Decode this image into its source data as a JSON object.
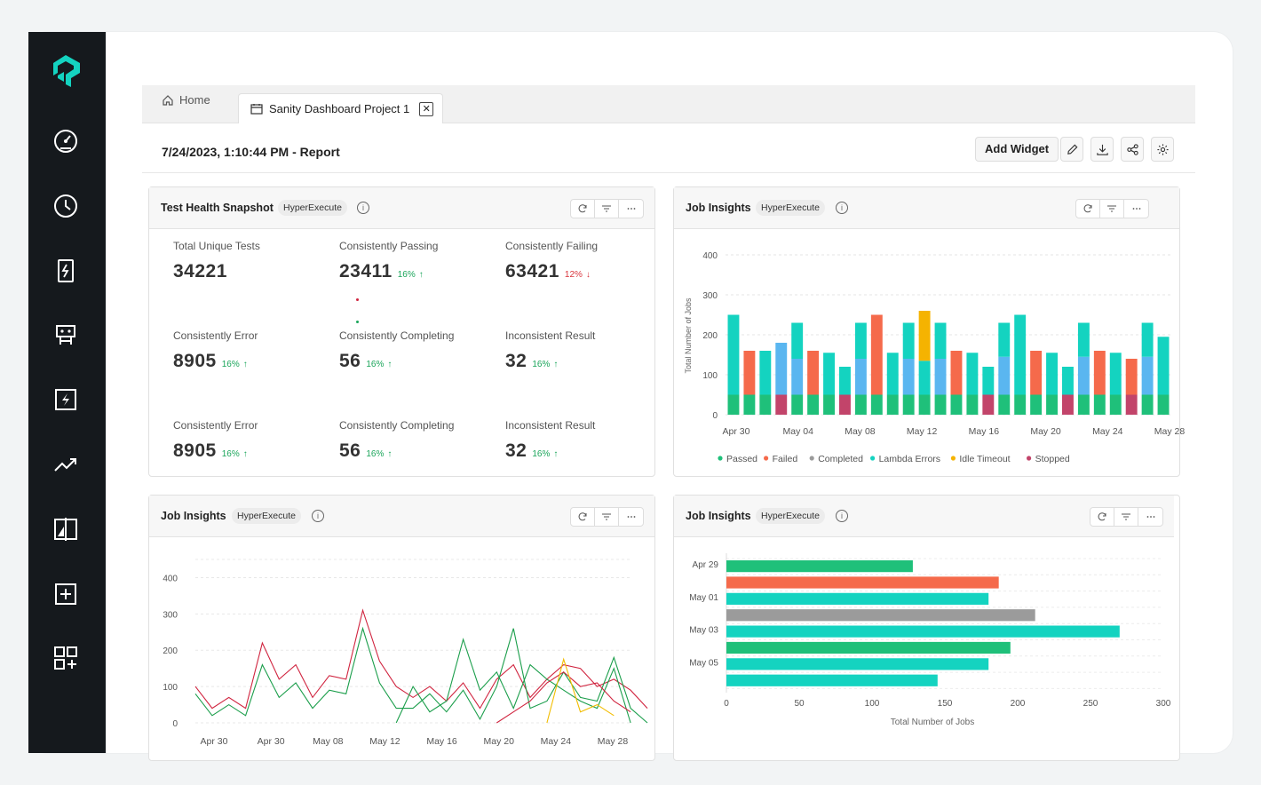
{
  "tabs": {
    "home_label": "Home",
    "active_label": "Sanity Dashboard Project 1",
    "close_glyph": "✕"
  },
  "report": {
    "title": "7/24/2023, 1:10:44 PM - Report",
    "add_widget_label": "Add Widget"
  },
  "widgets": {
    "health": {
      "title": "Test Health Snapshot",
      "badge": "HyperExecute",
      "stats": [
        {
          "label": "Total Unique Tests",
          "value": "34221",
          "delta": "",
          "trend": ""
        },
        {
          "label": "Consistently Passing",
          "value": "23411",
          "delta": "16%",
          "trend": "up"
        },
        {
          "label": "Consistently Failing",
          "value": "63421",
          "delta": "12%",
          "trend": "down"
        },
        {
          "label": "Consistently Error",
          "value": "8905",
          "delta": "16%",
          "trend": "up"
        },
        {
          "label": "Consistently Completing",
          "value": "56",
          "delta": "16%",
          "trend": "up"
        },
        {
          "label": "Inconsistent Result",
          "value": "32",
          "delta": "16%",
          "trend": "up"
        },
        {
          "label": "Consistently Error",
          "value": "8905",
          "delta": "16%",
          "trend": "up"
        },
        {
          "label": "Consistently Completing",
          "value": "56",
          "delta": "16%",
          "trend": "up"
        },
        {
          "label": "Inconsistent Result",
          "value": "32",
          "delta": "16%",
          "trend": "up"
        }
      ],
      "arrow_up": "↑",
      "arrow_down": "↓"
    },
    "bar": {
      "title": "Job Insights",
      "badge": "HyperExecute"
    },
    "line": {
      "title": "Job Insights",
      "badge": "HyperExecute"
    },
    "hbar": {
      "title": "Job Insights",
      "badge": "HyperExecute"
    }
  },
  "colors": {
    "passed": "#1fc07a",
    "failed": "#f56a4b",
    "completed": "#9b9b9b",
    "lambda": "#14d3c0",
    "idle": "#f5b301",
    "stopped": "#c2446a",
    "blue": "#5ab6f0",
    "line_red": "#d0243f",
    "line_green": "#1b9e4b",
    "line_yellow": "#f2bd00",
    "accent": "#14d3c0"
  },
  "chart_data": [
    {
      "type": "bar",
      "title": "Job Insights",
      "ylabel": "Total Number of Jobs",
      "ylim": [
        0,
        400
      ],
      "yticks": [
        0,
        100,
        200,
        300,
        400
      ],
      "xtick_labels": [
        "Apr 30",
        "May 04",
        "May 08",
        "May 12",
        "May 16",
        "May 20",
        "May 24",
        "May 28"
      ],
      "legend": [
        "Passed",
        "Failed",
        "Completed",
        "Lambda Errors",
        "Idle Timeout",
        "Stopped"
      ],
      "stacks": [
        {
          "segments": [
            [
              "Passed",
              50
            ],
            [
              "Lambda Errors",
              200
            ]
          ]
        },
        {
          "segments": [
            [
              "Passed",
              50
            ],
            [
              "Failed",
              110
            ]
          ]
        },
        {
          "segments": [
            [
              "Passed",
              50
            ],
            [
              "Lambda Errors",
              110
            ]
          ]
        },
        {
          "segments": [
            [
              "Stopped",
              50
            ],
            [
              "Blue",
              130
            ]
          ]
        },
        {
          "segments": [
            [
              "Passed",
              50
            ],
            [
              "Blue",
              90
            ],
            [
              "Lambda Errors",
              90
            ]
          ]
        },
        {
          "segments": [
            [
              "Passed",
              50
            ],
            [
              "Failed",
              110
            ]
          ]
        },
        {
          "segments": [
            [
              "Passed",
              50
            ],
            [
              "Lambda Errors",
              105
            ]
          ]
        },
        {
          "segments": [
            [
              "Stopped",
              50
            ],
            [
              "Lambda Errors",
              70
            ]
          ]
        },
        {
          "segments": [
            [
              "Passed",
              50
            ],
            [
              "Blue",
              90
            ],
            [
              "Lambda Errors",
              90
            ]
          ]
        },
        {
          "segments": [
            [
              "Passed",
              50
            ],
            [
              "Failed",
              200
            ]
          ]
        },
        {
          "segments": [
            [
              "Passed",
              50
            ],
            [
              "Lambda Errors",
              105
            ]
          ]
        },
        {
          "segments": [
            [
              "Passed",
              50
            ],
            [
              "Blue",
              90
            ],
            [
              "Lambda Errors",
              90
            ]
          ]
        },
        {
          "segments": [
            [
              "Passed",
              50
            ],
            [
              "Lambda Errors",
              85
            ],
            [
              "Idle Timeout",
              125
            ]
          ]
        },
        {
          "segments": [
            [
              "Passed",
              50
            ],
            [
              "Blue",
              90
            ],
            [
              "Lambda Errors",
              90
            ]
          ]
        },
        {
          "segments": [
            [
              "Passed",
              50
            ],
            [
              "Failed",
              110
            ]
          ]
        },
        {
          "segments": [
            [
              "Passed",
              50
            ],
            [
              "Lambda Errors",
              105
            ]
          ]
        },
        {
          "segments": [
            [
              "Stopped",
              50
            ],
            [
              "Lambda Errors",
              70
            ]
          ]
        },
        {
          "segments": [
            [
              "Passed",
              50
            ],
            [
              "Blue",
              95
            ],
            [
              "Lambda Errors",
              85
            ]
          ]
        },
        {
          "segments": [
            [
              "Passed",
              50
            ],
            [
              "Lambda Errors",
              200
            ]
          ]
        },
        {
          "segments": [
            [
              "Passed",
              50
            ],
            [
              "Failed",
              110
            ]
          ]
        },
        {
          "segments": [
            [
              "Passed",
              50
            ],
            [
              "Lambda Errors",
              105
            ]
          ]
        },
        {
          "segments": [
            [
              "Stopped",
              50
            ],
            [
              "Lambda Errors",
              70
            ]
          ]
        },
        {
          "segments": [
            [
              "Passed",
              50
            ],
            [
              "Blue",
              95
            ],
            [
              "Lambda Errors",
              85
            ]
          ]
        },
        {
          "segments": [
            [
              "Passed",
              50
            ],
            [
              "Failed",
              110
            ]
          ]
        },
        {
          "segments": [
            [
              "Passed",
              50
            ],
            [
              "Lambda Errors",
              105
            ]
          ]
        },
        {
          "segments": [
            [
              "Stopped",
              50
            ],
            [
              "Failed",
              90
            ]
          ]
        },
        {
          "segments": [
            [
              "Passed",
              50
            ],
            [
              "Blue",
              95
            ],
            [
              "Lambda Errors",
              85
            ]
          ]
        },
        {
          "segments": [
            [
              "Passed",
              50
            ],
            [
              "Lambda Errors",
              145
            ]
          ]
        }
      ]
    },
    {
      "type": "line",
      "title": "Job Insights",
      "ylim": [
        0,
        450
      ],
      "yticks": [
        0,
        100,
        200,
        300,
        400
      ],
      "xtick_labels": [
        "Apr 30",
        "Apr 30",
        "May 08",
        "May 12",
        "May 16",
        "May 20",
        "May 24",
        "May 28"
      ],
      "series": [
        {
          "name": "red",
          "values": [
            100,
            40,
            70,
            40,
            220,
            120,
            160,
            70,
            130,
            120,
            310,
            170,
            100,
            70,
            100,
            60,
            110,
            40,
            120,
            160,
            70,
            120,
            160,
            150,
            100,
            120,
            90,
            40
          ]
        },
        {
          "name": "green",
          "values": [
            80,
            20,
            50,
            20,
            160,
            70,
            110,
            40,
            90,
            80,
            260,
            110,
            40,
            40,
            80,
            30,
            90,
            10,
            100,
            260,
            40,
            60,
            140,
            70,
            60,
            180,
            40,
            0
          ]
        },
        {
          "name": "green2",
          "values": [
            null,
            null,
            null,
            null,
            null,
            null,
            null,
            null,
            null,
            null,
            null,
            null,
            0,
            100,
            30,
            60,
            230,
            90,
            140,
            40,
            160,
            120,
            90,
            60,
            40,
            150,
            0,
            null
          ]
        },
        {
          "name": "red2",
          "values": [
            null,
            null,
            null,
            null,
            null,
            null,
            null,
            null,
            null,
            null,
            null,
            null,
            null,
            null,
            null,
            null,
            null,
            null,
            0,
            30,
            60,
            110,
            140,
            100,
            110,
            60,
            30,
            null
          ]
        },
        {
          "name": "yellow",
          "values": [
            null,
            null,
            null,
            null,
            null,
            null,
            null,
            null,
            null,
            null,
            null,
            null,
            null,
            null,
            null,
            null,
            null,
            null,
            null,
            null,
            null,
            0,
            175,
            30,
            50,
            20,
            null,
            null
          ]
        }
      ]
    },
    {
      "type": "bar",
      "orientation": "horizontal",
      "title": "Job Insights",
      "xlabel": "Total Number of Jobs",
      "xlim": [
        0,
        300
      ],
      "xticks": [
        0,
        50,
        100,
        150,
        200,
        250,
        300
      ],
      "category_labels": [
        "Apr 29",
        "May 01",
        "May 03",
        "May 05"
      ],
      "bars": [
        {
          "value": 128,
          "color": "Passed"
        },
        {
          "value": 187,
          "color": "Failed"
        },
        {
          "value": 180,
          "color": "Lambda Errors"
        },
        {
          "value": 212,
          "color": "Completed"
        },
        {
          "value": 270,
          "color": "Lambda Errors"
        },
        {
          "value": 195,
          "color": "Passed"
        },
        {
          "value": 180,
          "color": "Lambda Errors"
        },
        {
          "value": 145,
          "color": "Lambda Errors"
        }
      ]
    }
  ]
}
